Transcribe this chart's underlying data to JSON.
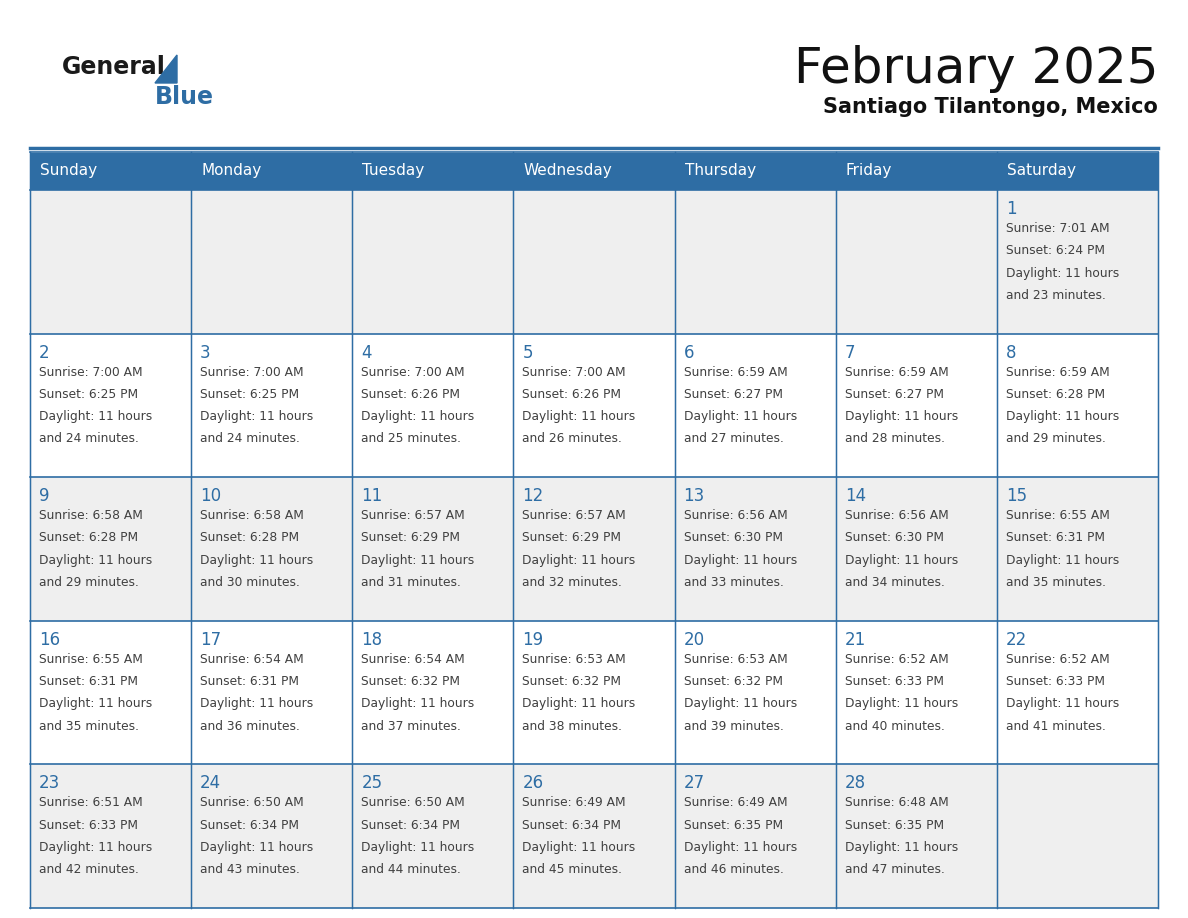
{
  "title": "February 2025",
  "subtitle": "Santiago Tilantongo, Mexico",
  "days_of_week": [
    "Sunday",
    "Monday",
    "Tuesday",
    "Wednesday",
    "Thursday",
    "Friday",
    "Saturday"
  ],
  "header_bg": "#2E6DA4",
  "header_text": "#FFFFFF",
  "cell_bg_odd": "#EFEFEF",
  "cell_bg_even": "#FFFFFF",
  "day_number_color": "#2E6DA4",
  "info_text_color": "#404040",
  "border_color": "#2E6DA4",
  "logo_general_color": "#1a1a1a",
  "logo_blue_color": "#2E6DA4",
  "calendar_data": [
    [
      null,
      null,
      null,
      null,
      null,
      null,
      {
        "day": 1,
        "sunrise": "7:01 AM",
        "sunset": "6:24 PM",
        "daylight_hours": 11,
        "daylight_minutes": 23
      }
    ],
    [
      {
        "day": 2,
        "sunrise": "7:00 AM",
        "sunset": "6:25 PM",
        "daylight_hours": 11,
        "daylight_minutes": 24
      },
      {
        "day": 3,
        "sunrise": "7:00 AM",
        "sunset": "6:25 PM",
        "daylight_hours": 11,
        "daylight_minutes": 24
      },
      {
        "day": 4,
        "sunrise": "7:00 AM",
        "sunset": "6:26 PM",
        "daylight_hours": 11,
        "daylight_minutes": 25
      },
      {
        "day": 5,
        "sunrise": "7:00 AM",
        "sunset": "6:26 PM",
        "daylight_hours": 11,
        "daylight_minutes": 26
      },
      {
        "day": 6,
        "sunrise": "6:59 AM",
        "sunset": "6:27 PM",
        "daylight_hours": 11,
        "daylight_minutes": 27
      },
      {
        "day": 7,
        "sunrise": "6:59 AM",
        "sunset": "6:27 PM",
        "daylight_hours": 11,
        "daylight_minutes": 28
      },
      {
        "day": 8,
        "sunrise": "6:59 AM",
        "sunset": "6:28 PM",
        "daylight_hours": 11,
        "daylight_minutes": 29
      }
    ],
    [
      {
        "day": 9,
        "sunrise": "6:58 AM",
        "sunset": "6:28 PM",
        "daylight_hours": 11,
        "daylight_minutes": 29
      },
      {
        "day": 10,
        "sunrise": "6:58 AM",
        "sunset": "6:28 PM",
        "daylight_hours": 11,
        "daylight_minutes": 30
      },
      {
        "day": 11,
        "sunrise": "6:57 AM",
        "sunset": "6:29 PM",
        "daylight_hours": 11,
        "daylight_minutes": 31
      },
      {
        "day": 12,
        "sunrise": "6:57 AM",
        "sunset": "6:29 PM",
        "daylight_hours": 11,
        "daylight_minutes": 32
      },
      {
        "day": 13,
        "sunrise": "6:56 AM",
        "sunset": "6:30 PM",
        "daylight_hours": 11,
        "daylight_minutes": 33
      },
      {
        "day": 14,
        "sunrise": "6:56 AM",
        "sunset": "6:30 PM",
        "daylight_hours": 11,
        "daylight_minutes": 34
      },
      {
        "day": 15,
        "sunrise": "6:55 AM",
        "sunset": "6:31 PM",
        "daylight_hours": 11,
        "daylight_minutes": 35
      }
    ],
    [
      {
        "day": 16,
        "sunrise": "6:55 AM",
        "sunset": "6:31 PM",
        "daylight_hours": 11,
        "daylight_minutes": 35
      },
      {
        "day": 17,
        "sunrise": "6:54 AM",
        "sunset": "6:31 PM",
        "daylight_hours": 11,
        "daylight_minutes": 36
      },
      {
        "day": 18,
        "sunrise": "6:54 AM",
        "sunset": "6:32 PM",
        "daylight_hours": 11,
        "daylight_minutes": 37
      },
      {
        "day": 19,
        "sunrise": "6:53 AM",
        "sunset": "6:32 PM",
        "daylight_hours": 11,
        "daylight_minutes": 38
      },
      {
        "day": 20,
        "sunrise": "6:53 AM",
        "sunset": "6:32 PM",
        "daylight_hours": 11,
        "daylight_minutes": 39
      },
      {
        "day": 21,
        "sunrise": "6:52 AM",
        "sunset": "6:33 PM",
        "daylight_hours": 11,
        "daylight_minutes": 40
      },
      {
        "day": 22,
        "sunrise": "6:52 AM",
        "sunset": "6:33 PM",
        "daylight_hours": 11,
        "daylight_minutes": 41
      }
    ],
    [
      {
        "day": 23,
        "sunrise": "6:51 AM",
        "sunset": "6:33 PM",
        "daylight_hours": 11,
        "daylight_minutes": 42
      },
      {
        "day": 24,
        "sunrise": "6:50 AM",
        "sunset": "6:34 PM",
        "daylight_hours": 11,
        "daylight_minutes": 43
      },
      {
        "day": 25,
        "sunrise": "6:50 AM",
        "sunset": "6:34 PM",
        "daylight_hours": 11,
        "daylight_minutes": 44
      },
      {
        "day": 26,
        "sunrise": "6:49 AM",
        "sunset": "6:34 PM",
        "daylight_hours": 11,
        "daylight_minutes": 45
      },
      {
        "day": 27,
        "sunrise": "6:49 AM",
        "sunset": "6:35 PM",
        "daylight_hours": 11,
        "daylight_minutes": 46
      },
      {
        "day": 28,
        "sunrise": "6:48 AM",
        "sunset": "6:35 PM",
        "daylight_hours": 11,
        "daylight_minutes": 47
      },
      null
    ]
  ]
}
